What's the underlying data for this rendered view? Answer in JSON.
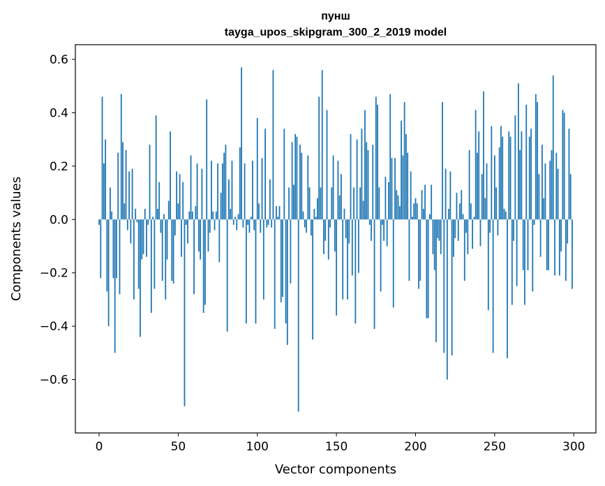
{
  "chart_data": {
    "type": "bar",
    "title": "пунш",
    "subtitle": "tayga_upos_skipgram_300_2_2019 model",
    "xlabel": "Vector components",
    "ylabel": "Components values",
    "xlim": [
      -15,
      314
    ],
    "ylim": [
      -0.8,
      0.655
    ],
    "xticks": [
      0,
      50,
      100,
      150,
      200,
      250,
      300
    ],
    "xtick_labels": [
      "0",
      "50",
      "100",
      "150",
      "200",
      "250",
      "300"
    ],
    "yticks": [
      0.6,
      0.4,
      0.2,
      0.0,
      -0.2,
      -0.4,
      -0.6
    ],
    "ytick_labels": [
      "0.6",
      "0.4",
      "0.2",
      "0.0",
      "−0.2",
      "−0.4",
      "−0.6"
    ],
    "bar_color": "#1f77b4",
    "x": [
      0,
      1,
      2,
      3,
      4,
      5,
      6,
      7,
      8,
      9,
      10,
      11,
      12,
      13,
      14,
      15,
      16,
      17,
      18,
      19,
      20,
      21,
      22,
      23,
      24,
      25,
      26,
      27,
      28,
      29,
      30,
      31,
      32,
      33,
      34,
      35,
      36,
      37,
      38,
      39,
      40,
      41,
      42,
      43,
      44,
      45,
      46,
      47,
      48,
      49,
      50,
      51,
      52,
      53,
      54,
      55,
      56,
      57,
      58,
      59,
      60,
      61,
      62,
      63,
      64,
      65,
      66,
      67,
      68,
      69,
      70,
      71,
      72,
      73,
      74,
      75,
      76,
      77,
      78,
      79,
      80,
      81,
      82,
      83,
      84,
      85,
      86,
      87,
      88,
      89,
      90,
      91,
      92,
      93,
      94,
      95,
      96,
      97,
      98,
      99,
      100,
      101,
      102,
      103,
      104,
      105,
      106,
      107,
      108,
      109,
      110,
      111,
      112,
      113,
      114,
      115,
      116,
      117,
      118,
      119,
      120,
      121,
      122,
      123,
      124,
      125,
      126,
      127,
      128,
      129,
      130,
      131,
      132,
      133,
      134,
      135,
      136,
      137,
      138,
      139,
      140,
      141,
      142,
      143,
      144,
      145,
      146,
      147,
      148,
      149,
      150,
      151,
      152,
      153,
      154,
      155,
      156,
      157,
      158,
      159,
      160,
      161,
      162,
      163,
      164,
      165,
      166,
      167,
      168,
      169,
      170,
      171,
      172,
      173,
      174,
      175,
      176,
      177,
      178,
      179,
      180,
      181,
      182,
      183,
      184,
      185,
      186,
      187,
      188,
      189,
      190,
      191,
      192,
      193,
      194,
      195,
      196,
      197,
      198,
      199,
      200,
      201,
      202,
      203,
      204,
      205,
      206,
      207,
      208,
      209,
      210,
      211,
      212,
      213,
      214,
      215,
      216,
      217,
      218,
      219,
      220,
      221,
      222,
      223,
      224,
      225,
      226,
      227,
      228,
      229,
      230,
      231,
      232,
      233,
      234,
      235,
      236,
      237,
      238,
      239,
      240,
      241,
      242,
      243,
      244,
      245,
      246,
      247,
      248,
      249,
      250,
      251,
      252,
      253,
      254,
      255,
      256,
      257,
      258,
      259,
      260,
      261,
      262,
      263,
      264,
      265,
      266,
      267,
      268,
      269,
      270,
      271,
      272,
      273,
      274,
      275,
      276,
      277,
      278,
      279,
      280,
      281,
      282,
      283,
      284,
      285,
      286,
      287,
      288,
      289,
      290,
      291,
      292,
      293,
      294,
      295,
      296,
      297,
      298,
      299
    ],
    "values": [
      -0.02,
      -0.22,
      0.46,
      0.21,
      0.3,
      -0.27,
      -0.4,
      0.12,
      0.03,
      -0.22,
      -0.5,
      -0.22,
      0.25,
      -0.28,
      0.47,
      0.29,
      0.06,
      0.26,
      -0.04,
      0.18,
      -0.09,
      0.19,
      -0.3,
      0.04,
      -0.01,
      -0.26,
      -0.44,
      -0.15,
      -0.13,
      0.04,
      -0.14,
      -0.02,
      0.28,
      -0.35,
      0.01,
      -0.26,
      0.39,
      0.04,
      0.14,
      -0.05,
      -0.23,
      0.02,
      -0.3,
      -0.15,
      0.07,
      0.33,
      -0.23,
      -0.24,
      -0.06,
      0.18,
      0.06,
      0.17,
      -0.14,
      0.14,
      -0.7,
      -0.02,
      -0.09,
      0.03,
      0.24,
      0.03,
      -0.28,
      0.05,
      0.21,
      -0.12,
      -0.15,
      0.19,
      -0.35,
      -0.32,
      0.45,
      -0.12,
      -0.05,
      0.22,
      0.03,
      -0.04,
      0.03,
      0.21,
      -0.16,
      0.1,
      0.21,
      0.25,
      0.28,
      -0.42,
      0.15,
      0.04,
      0.22,
      -0.02,
      0.01,
      -0.04,
      0.02,
      0.27,
      0.57,
      -0.03,
      0.21,
      -0.39,
      -0.02,
      -0.05,
      0.01,
      0.22,
      -0.04,
      -0.39,
      0.38,
      0.06,
      -0.05,
      0.23,
      -0.3,
      0.34,
      -0.03,
      -0.02,
      0.15,
      -0.03,
      0.56,
      -0.41,
      0.05,
      0.01,
      0.05,
      -0.31,
      -0.29,
      0.34,
      -0.39,
      -0.47,
      0.12,
      -0.24,
      0.29,
      0.13,
      0.32,
      0.31,
      -0.72,
      0.28,
      0.25,
      0.03,
      -0.03,
      -0.05,
      0.24,
      0.12,
      -0.06,
      -0.45,
      0.04,
      0.01,
      0.08,
      0.46,
      0.12,
      0.56,
      -0.13,
      -0.08,
      0.41,
      -0.15,
      -0.03,
      0.12,
      0.24,
      -0.12,
      -0.36,
      0.22,
      0.09,
      0.17,
      -0.3,
      0.04,
      -0.07,
      -0.3,
      -0.09,
      0.32,
      -0.21,
      0.12,
      -0.39,
      0.3,
      -0.2,
      0.12,
      0.34,
      0.07,
      0.41,
      0.29,
      0.26,
      -0.02,
      -0.08,
      0.28,
      -0.41,
      0.46,
      0.43,
      0.12,
      -0.27,
      -0.02,
      -0.08,
      0.16,
      -0.1,
      0.14,
      0.47,
      0.23,
      -0.33,
      0.23,
      0.11,
      0.09,
      0.05,
      0.37,
      0.24,
      0.44,
      0.32,
      0.25,
      -0.23,
      0.18,
      0.01,
      0.06,
      0.08,
      0.06,
      -0.26,
      -0.23,
      0.11,
      0.04,
      0.13,
      -0.37,
      -0.37,
      0.02,
      0.13,
      -0.13,
      -0.19,
      -0.46,
      -0.07,
      -0.08,
      -0.13,
      0.44,
      -0.5,
      0.19,
      -0.6,
      0.04,
      0.18,
      -0.51,
      -0.14,
      -0.07,
      0.1,
      -0.08,
      0.06,
      0.11,
      0.02,
      -0.23,
      -0.05,
      -0.13,
      0.26,
      0.06,
      -0.11,
      0.01,
      0.41,
      0.25,
      0.33,
      -0.1,
      0.17,
      0.48,
      0.08,
      0.21,
      -0.34,
      -0.05,
      0.35,
      -0.5,
      0.24,
      0.12,
      -0.06,
      0.27,
      0.35,
      0.31,
      0.04,
      0.03,
      -0.52,
      0.33,
      0.31,
      -0.32,
      -0.08,
      0.39,
      -0.25,
      0.51,
      0.26,
      0.33,
      -0.19,
      -0.32,
      0.43,
      -0.19,
      0.31,
      0.34,
      -0.27,
      -0.02,
      0.47,
      0.44,
      0.17,
      -0.14,
      0.28,
      0.08,
      0.21,
      -0.19,
      -0.19,
      0.22,
      0.26,
      0.54,
      -0.21,
      0.25,
      0.19,
      -0.21,
      -0.12,
      0.41,
      0.4,
      -0.23,
      -0.09,
      0.34,
      0.17,
      -0.26
    ]
  }
}
